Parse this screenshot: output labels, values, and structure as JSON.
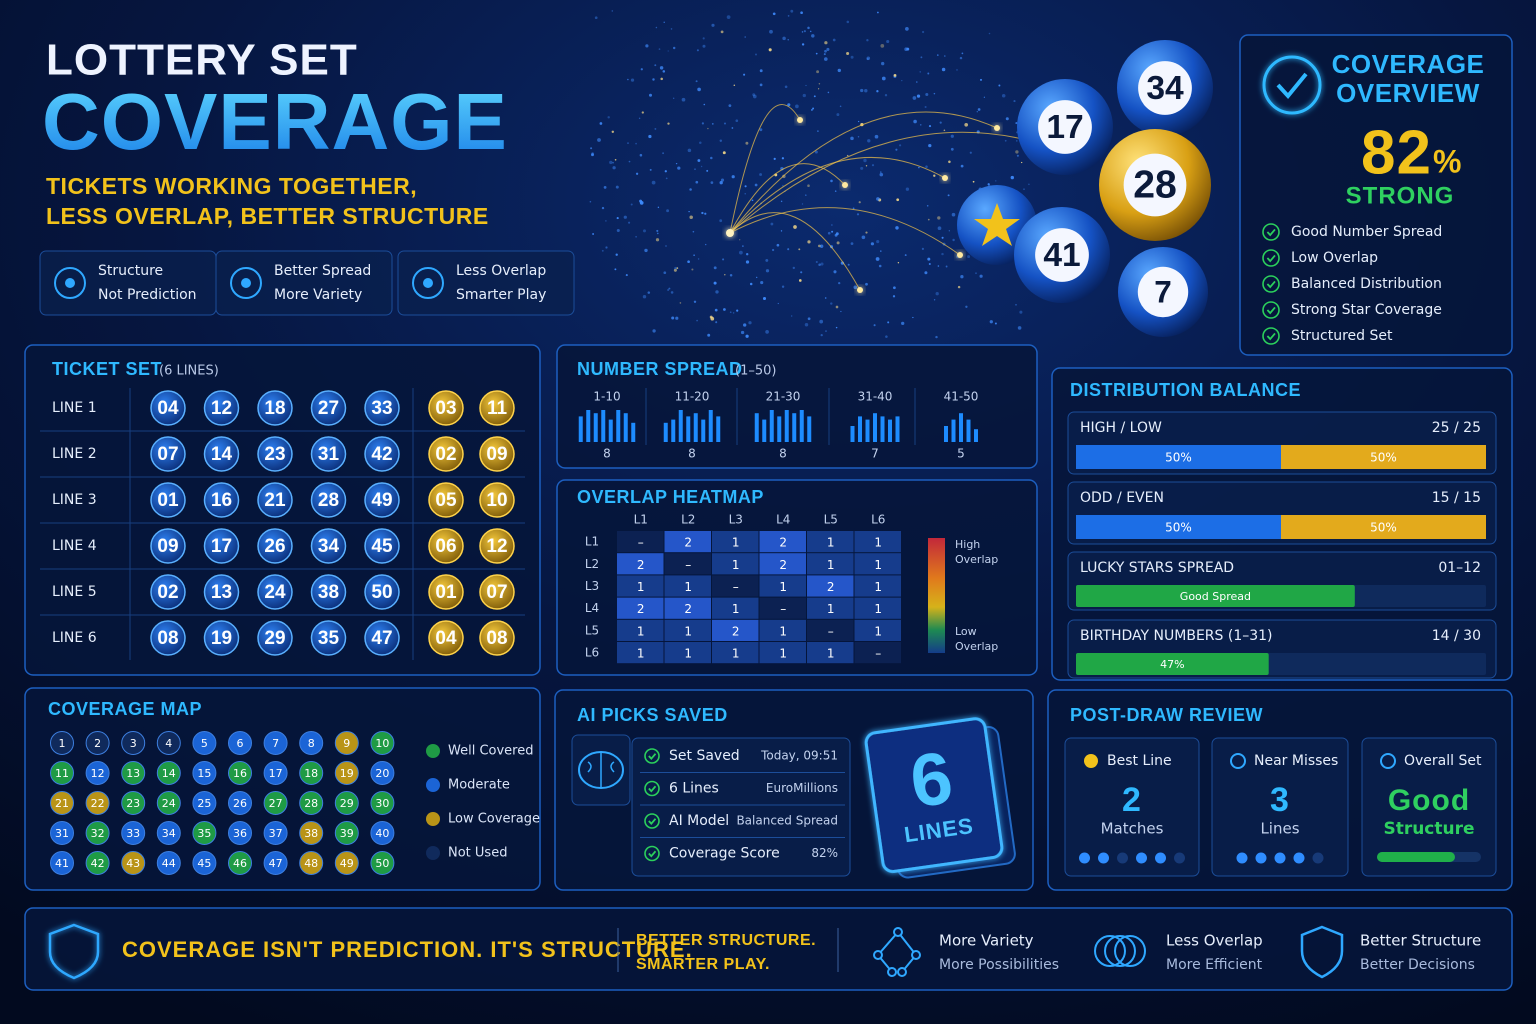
{
  "header": {
    "title": "LOTTERY SET",
    "headline": "COVERAGE",
    "tagline": [
      "TICKETS WORKING TOGETHER,",
      "LESS OVERLAP, BETTER STRUCTURE"
    ]
  },
  "badges": [
    {
      "title": "Structure",
      "subtitle": "Not Prediction"
    },
    {
      "title": "Better Spread",
      "subtitle": "More Variety"
    },
    {
      "title": "Less Overlap",
      "subtitle": "Smarter Play"
    }
  ],
  "balls": [
    "34",
    "17",
    "28",
    "41",
    "7"
  ],
  "overview": {
    "title": [
      "COVERAGE",
      "OVERVIEW"
    ],
    "score": "82",
    "unit": "%",
    "rating": "STRONG",
    "checks": [
      "Good Number Spread",
      "Low Overlap",
      "Balanced Distribution",
      "Strong Star Coverage",
      "Structured Set"
    ]
  },
  "ticket_set": {
    "title": "TICKET SET",
    "subtitle": "(6 LINES)",
    "lines": [
      {
        "label": "LINE 1",
        "main": [
          "04",
          "12",
          "18",
          "27",
          "33"
        ],
        "stars": [
          "03",
          "11"
        ]
      },
      {
        "label": "LINE 2",
        "main": [
          "07",
          "14",
          "23",
          "31",
          "42"
        ],
        "stars": [
          "02",
          "09"
        ]
      },
      {
        "label": "LINE 3",
        "main": [
          "01",
          "16",
          "21",
          "28",
          "49"
        ],
        "stars": [
          "05",
          "10"
        ]
      },
      {
        "label": "LINE 4",
        "main": [
          "09",
          "17",
          "26",
          "34",
          "45"
        ],
        "stars": [
          "06",
          "12"
        ]
      },
      {
        "label": "LINE 5",
        "main": [
          "02",
          "13",
          "24",
          "38",
          "50"
        ],
        "stars": [
          "01",
          "07"
        ]
      },
      {
        "label": "LINE 6",
        "main": [
          "08",
          "19",
          "29",
          "35",
          "47"
        ],
        "stars": [
          "04",
          "08"
        ]
      }
    ]
  },
  "number_spread": {
    "title": "NUMBER SPREAD",
    "subtitle": "(1–50)",
    "groups": [
      {
        "label": "1-10",
        "count": 8,
        "bars": [
          8,
          10,
          9,
          10,
          7,
          10,
          9,
          6
        ]
      },
      {
        "label": "11-20",
        "count": 8,
        "bars": [
          6,
          7,
          10,
          8,
          9,
          7,
          10,
          8
        ]
      },
      {
        "label": "21-30",
        "count": 8,
        "bars": [
          9,
          7,
          10,
          8,
          10,
          9,
          10,
          8
        ]
      },
      {
        "label": "31-40",
        "count": 7,
        "bars": [
          5,
          8,
          7,
          9,
          8,
          7,
          8
        ]
      },
      {
        "label": "41-50",
        "count": 5,
        "bars": [
          5,
          7,
          9,
          7,
          4
        ]
      }
    ]
  },
  "heatmap": {
    "title": "OVERLAP HEATMAP",
    "columns": [
      "L1",
      "L2",
      "L3",
      "L4",
      "L5",
      "L6"
    ],
    "rows": [
      "L1",
      "L2",
      "L3",
      "L4",
      "L5",
      "L6"
    ],
    "cells": [
      [
        "–",
        "2",
        "1",
        "2",
        "1",
        "1"
      ],
      [
        "2",
        "–",
        "1",
        "2",
        "1",
        "1"
      ],
      [
        "1",
        "1",
        "–",
        "1",
        "2",
        "1"
      ],
      [
        "2",
        "2",
        "1",
        "–",
        "1",
        "1"
      ],
      [
        "1",
        "1",
        "2",
        "1",
        "–",
        "1"
      ],
      [
        "1",
        "1",
        "1",
        "1",
        "1",
        "–"
      ]
    ],
    "legend": {
      "high": [
        "High",
        "Overlap"
      ],
      "low": [
        "Low",
        "Overlap"
      ]
    }
  },
  "distribution": {
    "title": "DISTRIBUTION BALANCE",
    "segment_colors": [
      "#1c6ee6",
      "#e3aa1c"
    ],
    "fill_color": "#20a746",
    "items": [
      {
        "label": "HIGH / LOW",
        "ratio": "25 / 25",
        "segments": [
          {
            "value": 50,
            "label": "50%"
          },
          {
            "value": 50,
            "label": "50%"
          }
        ]
      },
      {
        "label": "ODD / EVEN",
        "ratio": "15 / 15",
        "segments": [
          {
            "value": 50,
            "label": "50%"
          },
          {
            "value": 50,
            "label": "50%"
          }
        ]
      },
      {
        "label": "LUCKY STARS SPREAD",
        "ratio": "01–12",
        "fill": 68,
        "fill_text": "Good Spread"
      },
      {
        "label": "BIRTHDAY NUMBERS (1–31)",
        "ratio": "14 / 30",
        "fill": 47,
        "fill_text": "47%"
      }
    ]
  },
  "coverage_map": {
    "title": "COVERAGE MAP",
    "legend": [
      {
        "label": "Well Covered",
        "color": "#1f9b45"
      },
      {
        "label": "Moderate",
        "color": "#1b64d6"
      },
      {
        "label": "Low Coverage",
        "color": "#b99417"
      },
      {
        "label": "Not Used",
        "color": "#102a5c"
      }
    ],
    "numbers": [
      1,
      2,
      3,
      4,
      5,
      6,
      7,
      8,
      9,
      10,
      11,
      12,
      13,
      14,
      15,
      16,
      17,
      18,
      19,
      20,
      21,
      22,
      23,
      24,
      25,
      26,
      27,
      28,
      29,
      30,
      31,
      32,
      33,
      34,
      35,
      36,
      37,
      38,
      39,
      40,
      41,
      42,
      43,
      44,
      45,
      46,
      47,
      48,
      49,
      50
    ],
    "levels": [
      3,
      3,
      3,
      3,
      1,
      1,
      1,
      1,
      2,
      0,
      0,
      1,
      0,
      0,
      1,
      0,
      1,
      0,
      2,
      1,
      2,
      2,
      0,
      0,
      1,
      1,
      0,
      0,
      0,
      0,
      1,
      0,
      1,
      1,
      0,
      1,
      1,
      2,
      0,
      1,
      1,
      0,
      2,
      1,
      1,
      0,
      1,
      2,
      2,
      0
    ]
  },
  "ai_picks": {
    "title": "AI PICKS SAVED",
    "rows": [
      {
        "label": "Set Saved",
        "value": "Today, 09:51"
      },
      {
        "label": "6 Lines",
        "value": "EuroMillions"
      },
      {
        "label": "AI Model",
        "value": "Balanced Spread"
      },
      {
        "label": "Coverage Score",
        "value": "82%"
      }
    ],
    "card_number": "6",
    "card_text": "LINES"
  },
  "post_draw": {
    "title": "POST-DRAW REVIEW",
    "cards": [
      {
        "title": "Best Line",
        "big": "2",
        "sub": "Matches"
      },
      {
        "title": "Near Misses",
        "big": "3",
        "sub": "Lines"
      },
      {
        "title": "Overall Set",
        "big": "Good",
        "sub": "Structure",
        "meter": 75
      }
    ]
  },
  "footer": {
    "slogan": "COVERAGE ISN'T PREDICTION. IT'S STRUCTURE.",
    "tagline": [
      "BETTER STRUCTURE.",
      "SMARTER PLAY."
    ],
    "features": [
      {
        "title": "More Variety",
        "subtitle": "More Possibilities"
      },
      {
        "title": "Less Overlap",
        "subtitle": "More Efficient"
      },
      {
        "title": "Better Structure",
        "subtitle": "Better Decisions"
      }
    ]
  }
}
